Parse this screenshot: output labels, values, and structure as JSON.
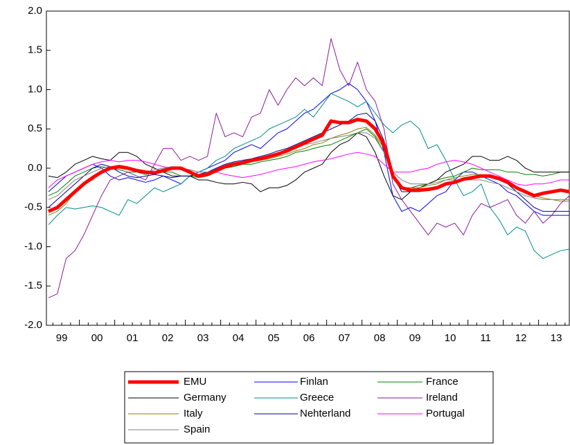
{
  "chart_data": {
    "type": "line",
    "categories": [
      null,
      "99",
      null,
      null,
      null,
      "00",
      null,
      null,
      null,
      "01",
      null,
      null,
      null,
      "02",
      null,
      null,
      null,
      "03",
      null,
      null,
      null,
      "04",
      null,
      null,
      null,
      "05",
      null,
      null,
      null,
      "06",
      null,
      null,
      null,
      "07",
      null,
      null,
      null,
      "08",
      null,
      null,
      null,
      "09",
      null,
      null,
      null,
      "10",
      null,
      null,
      null,
      "11",
      null,
      null,
      null,
      "12",
      null,
      null,
      null,
      "13",
      null,
      null
    ],
    "ylim": [
      -2,
      2
    ],
    "yticks": [
      {
        "value": -2,
        "label": "-2.0"
      },
      {
        "value": -1.5,
        "label": "-1.5"
      },
      {
        "value": -1,
        "label": "-1.0"
      },
      {
        "value": -0.5,
        "label": "-0.5"
      },
      {
        "value": 0,
        "label": "0.0"
      },
      {
        "value": 0.5,
        "label": "0.5"
      },
      {
        "value": 1,
        "label": "1.0"
      },
      {
        "value": 1.5,
        "label": "1.5"
      },
      {
        "value": 2,
        "label": "2.0"
      }
    ],
    "series": [
      {
        "name": "EMU",
        "color": "#ff0000",
        "width": 5,
        "values": [
          -0.55,
          -0.5,
          -0.4,
          -0.3,
          -0.2,
          -0.12,
          -0.05,
          0.0,
          0.02,
          0.0,
          -0.03,
          -0.05,
          -0.06,
          -0.03,
          0.0,
          0.0,
          -0.05,
          -0.1,
          -0.08,
          -0.03,
          0.02,
          0.05,
          0.07,
          0.1,
          0.12,
          0.15,
          0.18,
          0.22,
          0.27,
          0.32,
          0.37,
          0.42,
          0.6,
          0.58,
          0.58,
          0.62,
          0.6,
          0.5,
          0.3,
          -0.1,
          -0.25,
          -0.28,
          -0.28,
          -0.27,
          -0.25,
          -0.2,
          -0.18,
          -0.14,
          -0.12,
          -0.1,
          -0.1,
          -0.13,
          -0.18,
          -0.25,
          -0.3,
          -0.35,
          -0.32,
          -0.3,
          -0.28,
          -0.3
        ]
      },
      {
        "name": "Finlan",
        "color": "#0000ff",
        "width": 1,
        "values": [
          -0.3,
          -0.2,
          -0.1,
          -0.05,
          0.0,
          0.05,
          0.0,
          -0.1,
          -0.15,
          -0.12,
          -0.15,
          -0.18,
          -0.15,
          -0.1,
          -0.15,
          -0.2,
          -0.1,
          -0.05,
          0.0,
          0.05,
          0.1,
          0.2,
          0.25,
          0.3,
          0.25,
          0.35,
          0.45,
          0.5,
          0.6,
          0.7,
          0.75,
          0.85,
          0.95,
          1.0,
          1.08,
          1.0,
          0.85,
          0.6,
          0.2,
          -0.35,
          -0.55,
          -0.5,
          -0.55,
          -0.45,
          -0.35,
          -0.3,
          -0.15,
          -0.05,
          -0.05,
          -0.1,
          -0.15,
          -0.2,
          -0.3,
          -0.35,
          -0.45,
          -0.55,
          -0.6,
          -0.6,
          -0.6,
          -0.6
        ]
      },
      {
        "name": "France",
        "color": "#008000",
        "width": 1,
        "values": [
          -0.35,
          -0.3,
          -0.2,
          -0.1,
          -0.05,
          0.0,
          0.02,
          0.0,
          -0.02,
          -0.05,
          -0.05,
          -0.08,
          -0.05,
          -0.05,
          -0.05,
          -0.1,
          -0.1,
          -0.12,
          -0.1,
          -0.05,
          0.0,
          0.02,
          0.05,
          0.05,
          0.08,
          0.1,
          0.12,
          0.15,
          0.2,
          0.22,
          0.25,
          0.28,
          0.3,
          0.35,
          0.4,
          0.45,
          0.5,
          0.4,
          0.2,
          -0.1,
          -0.25,
          -0.25,
          -0.22,
          -0.2,
          -0.15,
          -0.12,
          -0.1,
          -0.05,
          0.0,
          -0.02,
          -0.02,
          -0.02,
          -0.05,
          -0.05,
          -0.08,
          -0.08,
          -0.1,
          -0.08,
          -0.05,
          -0.05
        ]
      },
      {
        "name": "Germany",
        "color": "#000000",
        "width": 1,
        "values": [
          -0.1,
          -0.12,
          -0.05,
          0.05,
          0.1,
          0.15,
          0.12,
          0.1,
          0.2,
          0.2,
          0.15,
          0.05,
          0.0,
          -0.05,
          -0.1,
          -0.1,
          -0.1,
          -0.15,
          -0.15,
          -0.18,
          -0.2,
          -0.2,
          -0.18,
          -0.2,
          -0.3,
          -0.25,
          -0.25,
          -0.22,
          -0.15,
          -0.05,
          0.0,
          0.05,
          0.2,
          0.3,
          0.35,
          0.45,
          0.4,
          0.2,
          -0.1,
          -0.35,
          -0.4,
          -0.3,
          -0.25,
          -0.2,
          -0.15,
          -0.05,
          0.0,
          0.05,
          0.15,
          0.15,
          0.1,
          0.1,
          0.15,
          0.1,
          0.0,
          -0.05,
          -0.05,
          -0.05,
          -0.05,
          -0.05
        ]
      },
      {
        "name": "Greece",
        "color": "#008b8b",
        "width": 1,
        "values": [
          -0.72,
          -0.6,
          -0.5,
          -0.52,
          -0.5,
          -0.48,
          -0.5,
          -0.55,
          -0.6,
          -0.4,
          -0.45,
          -0.35,
          -0.25,
          -0.3,
          -0.25,
          -0.2,
          -0.1,
          -0.05,
          0.0,
          0.1,
          0.15,
          0.25,
          0.3,
          0.35,
          0.4,
          0.5,
          0.55,
          0.6,
          0.65,
          0.75,
          0.65,
          0.8,
          0.95,
          0.9,
          0.85,
          0.78,
          0.85,
          0.7,
          0.55,
          0.45,
          0.55,
          0.6,
          0.5,
          0.25,
          0.3,
          0.1,
          -0.15,
          -0.35,
          -0.3,
          -0.2,
          -0.5,
          -0.65,
          -0.85,
          -0.75,
          -0.8,
          -1.05,
          -1.15,
          -1.1,
          -1.05,
          -1.03
        ]
      },
      {
        "name": "Ireland",
        "color": "#8b1a9b",
        "width": 1,
        "values": [
          -1.65,
          -1.6,
          -1.15,
          -1.05,
          -0.85,
          -0.6,
          -0.35,
          -0.15,
          -0.1,
          -0.05,
          -0.1,
          -0.15,
          0.05,
          0.25,
          0.25,
          0.1,
          0.15,
          0.1,
          0.15,
          0.7,
          0.4,
          0.45,
          0.4,
          0.65,
          0.7,
          1.0,
          0.8,
          1.0,
          1.15,
          1.05,
          1.15,
          1.05,
          1.65,
          1.25,
          1.05,
          1.35,
          1.0,
          0.85,
          0.5,
          -0.2,
          -0.4,
          -0.55,
          -0.7,
          -0.85,
          -0.7,
          -0.75,
          -0.7,
          -0.85,
          -0.6,
          -0.45,
          -0.5,
          -0.45,
          -0.4,
          -0.6,
          -0.7,
          -0.55,
          -0.7,
          -0.6,
          -0.45,
          -0.35
        ]
      },
      {
        "name": "Italy",
        "color": "#8b8000",
        "width": 1,
        "values": [
          -0.6,
          -0.55,
          -0.45,
          -0.3,
          -0.2,
          -0.15,
          -0.05,
          0.0,
          0.02,
          0.0,
          -0.02,
          -0.05,
          -0.05,
          -0.02,
          0.0,
          -0.02,
          -0.05,
          -0.08,
          -0.05,
          -0.02,
          0.02,
          0.05,
          0.05,
          0.08,
          0.1,
          0.12,
          0.15,
          0.18,
          0.22,
          0.25,
          0.3,
          0.32,
          0.38,
          0.42,
          0.45,
          0.5,
          0.52,
          0.42,
          0.25,
          -0.1,
          -0.25,
          -0.25,
          -0.25,
          -0.22,
          -0.2,
          -0.15,
          -0.12,
          -0.1,
          -0.08,
          -0.08,
          -0.1,
          -0.12,
          -0.18,
          -0.25,
          -0.3,
          -0.35,
          -0.38,
          -0.4,
          -0.42,
          -0.42
        ]
      },
      {
        "name": "Nehterland",
        "color": "#00008b",
        "width": 1,
        "values": [
          -0.5,
          -0.4,
          -0.3,
          -0.2,
          -0.1,
          0.0,
          0.05,
          0.02,
          -0.05,
          -0.1,
          -0.12,
          -0.1,
          -0.08,
          -0.1,
          -0.12,
          -0.1,
          -0.1,
          -0.08,
          -0.05,
          0.0,
          0.05,
          0.08,
          0.1,
          0.12,
          0.15,
          0.18,
          0.22,
          0.25,
          0.3,
          0.35,
          0.4,
          0.45,
          0.5,
          0.55,
          0.6,
          0.68,
          0.7,
          0.6,
          0.35,
          -0.1,
          -0.3,
          -0.3,
          -0.3,
          -0.28,
          -0.25,
          -0.2,
          -0.18,
          -0.15,
          -0.12,
          -0.1,
          -0.12,
          -0.15,
          -0.2,
          -0.3,
          -0.4,
          -0.5,
          -0.55,
          -0.55,
          -0.55,
          -0.55
        ]
      },
      {
        "name": "Portugal",
        "color": "#ff00ff",
        "width": 1,
        "values": [
          -0.25,
          -0.15,
          -0.1,
          -0.05,
          0.0,
          0.05,
          0.08,
          0.1,
          0.08,
          0.1,
          0.1,
          0.08,
          0.05,
          0.02,
          0.0,
          -0.02,
          -0.02,
          -0.05,
          -0.05,
          -0.05,
          -0.08,
          -0.1,
          -0.12,
          -0.1,
          -0.08,
          -0.05,
          -0.02,
          0.0,
          0.02,
          0.05,
          0.08,
          0.1,
          0.12,
          0.15,
          0.18,
          0.2,
          0.18,
          0.15,
          0.05,
          -0.05,
          -0.05,
          -0.05,
          -0.02,
          0.0,
          0.05,
          0.08,
          0.1,
          0.08,
          0.05,
          0.0,
          -0.05,
          -0.1,
          -0.15,
          -0.2,
          -0.22,
          -0.2,
          -0.2,
          -0.18,
          -0.15,
          -0.15
        ]
      },
      {
        "name": "Spain",
        "color": "#808080",
        "width": 1,
        "values": [
          -0.4,
          -0.35,
          -0.25,
          -0.15,
          -0.1,
          -0.05,
          0.0,
          0.02,
          0.0,
          -0.02,
          -0.05,
          -0.05,
          -0.02,
          0.0,
          0.02,
          0.0,
          -0.02,
          -0.05,
          -0.05,
          -0.02,
          0.02,
          0.05,
          0.08,
          0.1,
          0.12,
          0.15,
          0.2,
          0.22,
          0.25,
          0.3,
          0.32,
          0.35,
          0.38,
          0.4,
          0.42,
          0.45,
          0.45,
          0.38,
          0.2,
          -0.05,
          -0.15,
          -0.2,
          -0.2,
          -0.2,
          -0.18,
          -0.15,
          -0.15,
          -0.15,
          -0.15,
          -0.15,
          -0.18,
          -0.2,
          -0.25,
          -0.3,
          -0.35,
          -0.38,
          -0.4,
          -0.4,
          -0.4,
          -0.4
        ]
      }
    ]
  }
}
